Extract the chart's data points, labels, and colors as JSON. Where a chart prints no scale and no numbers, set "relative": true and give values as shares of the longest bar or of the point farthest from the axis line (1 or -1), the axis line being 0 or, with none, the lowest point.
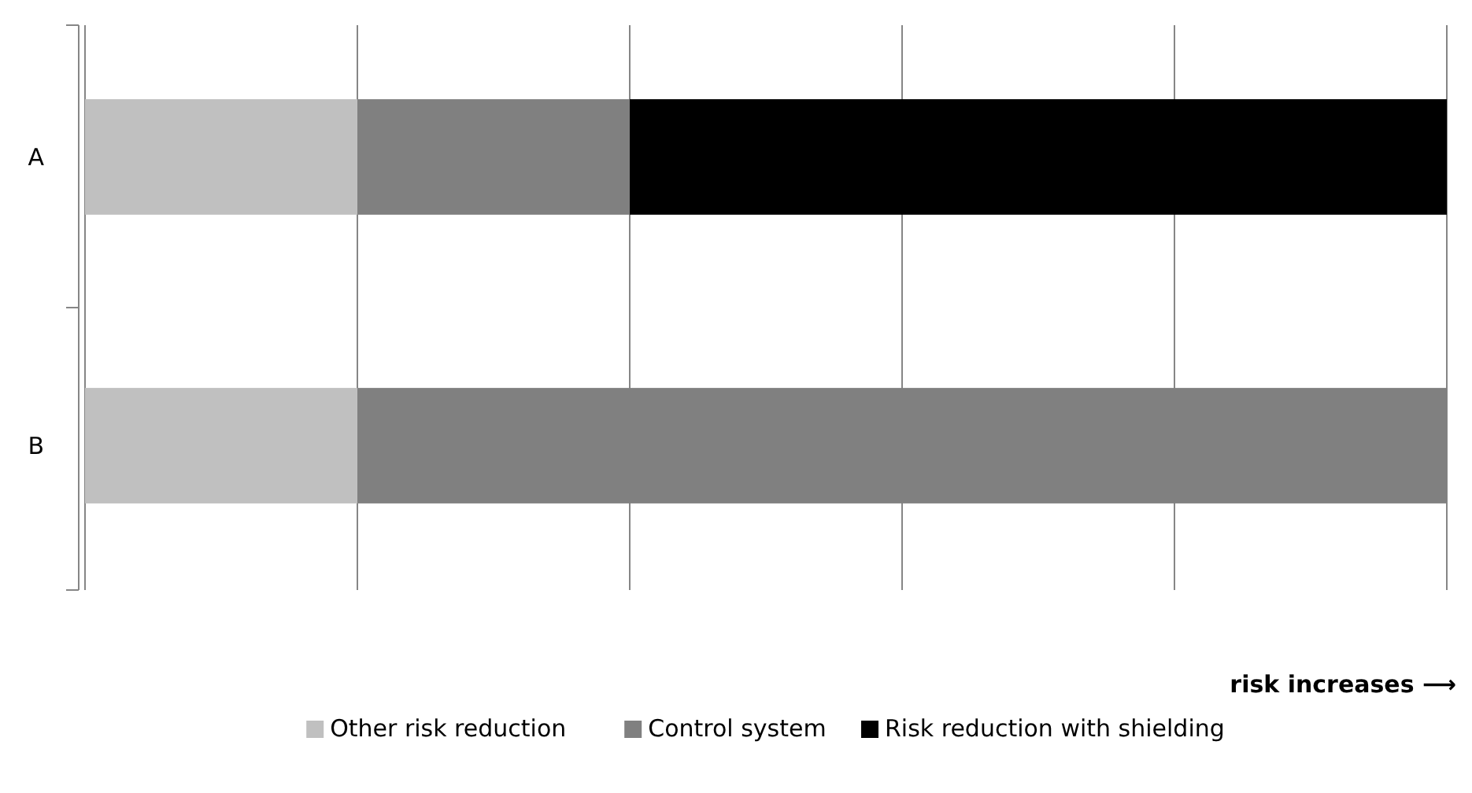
{
  "chart_data": {
    "type": "bar",
    "orientation": "horizontal",
    "stacked": true,
    "relative": true,
    "xlabel": "risk increases ⟶",
    "categories": [
      "A",
      "B"
    ],
    "series": [
      {
        "name": "Other risk reduction",
        "color": "#c0c0c0",
        "values": [
          0.2,
          0.2
        ]
      },
      {
        "name": "Control system",
        "color": "#808080",
        "values": [
          0.2,
          0.8
        ]
      },
      {
        "name": "Risk reduction with shielding",
        "color": "#000000",
        "values": [
          0.6,
          null
        ]
      }
    ],
    "grid": "x",
    "legend": "bottom"
  }
}
